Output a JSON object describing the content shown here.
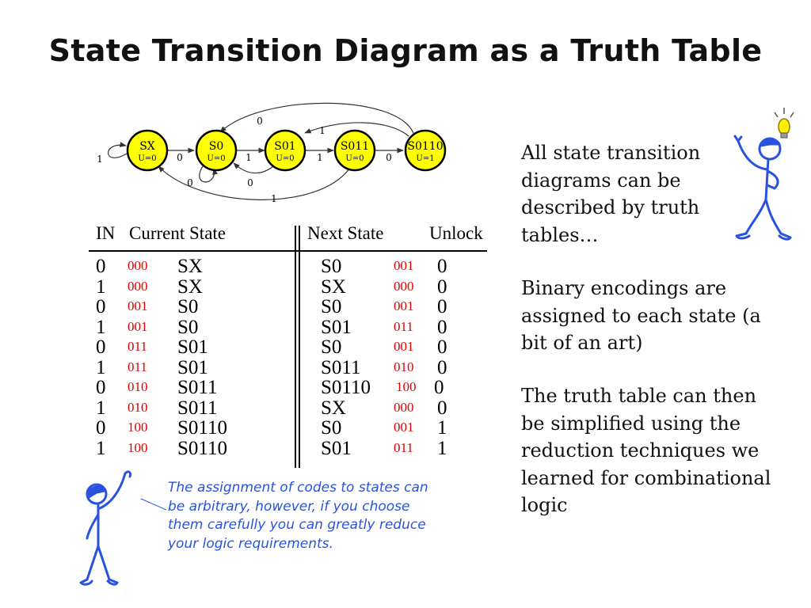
{
  "title": "State Transition Diagram as a Truth Table",
  "diagram": {
    "states": [
      {
        "name": "SX",
        "output": "U=0"
      },
      {
        "name": "S0",
        "output": "U=0"
      },
      {
        "name": "S01",
        "output": "U=0"
      },
      {
        "name": "S011",
        "output": "U=0"
      },
      {
        "name": "S0110",
        "output": "U=1"
      }
    ],
    "edge_labels": {
      "sx_self": "1",
      "sx_to_s0": "0",
      "s0_self": "0",
      "s0_to_s01": "1",
      "s01_to_s0": "0",
      "s01_to_s011": "1",
      "s011_to_s0110": "0",
      "s0110_to_s0": "0",
      "s0110_to_s01": "1",
      "s011_to_sx": "1"
    },
    "fill_color": "#ffff00",
    "stroke_color": "#000000"
  },
  "table": {
    "headers": {
      "in": "IN",
      "current": "Current State",
      "next": "Next State",
      "unlock": "Unlock"
    },
    "rows": [
      {
        "in": "0",
        "cur_code": "000",
        "cur": "SX",
        "next": "S0",
        "next_code": "001",
        "unlock": "0"
      },
      {
        "in": "1",
        "cur_code": "000",
        "cur": "SX",
        "next": "SX",
        "next_code": "000",
        "unlock": "0"
      },
      {
        "in": "0",
        "cur_code": "001",
        "cur": "S0",
        "next": "S0",
        "next_code": "001",
        "unlock": "0"
      },
      {
        "in": "1",
        "cur_code": "001",
        "cur": "S0",
        "next": "S01",
        "next_code": "011",
        "unlock": "0"
      },
      {
        "in": "0",
        "cur_code": "011",
        "cur": "S01",
        "next": "S0",
        "next_code": "001",
        "unlock": "0"
      },
      {
        "in": "1",
        "cur_code": "011",
        "cur": "S01",
        "next": "S011",
        "next_code": "010",
        "unlock": "0"
      },
      {
        "in": "0",
        "cur_code": "010",
        "cur": "S011",
        "next": "S0110",
        "next_code": "100",
        "unlock": "0"
      },
      {
        "in": "1",
        "cur_code": "010",
        "cur": "S011",
        "next": "SX",
        "next_code": "000",
        "unlock": "0"
      },
      {
        "in": "0",
        "cur_code": "100",
        "cur": "S0110",
        "next": "S0",
        "next_code": "001",
        "unlock": "1"
      },
      {
        "in": "1",
        "cur_code": "100",
        "cur": "S0110",
        "next": "S01",
        "next_code": "011",
        "unlock": "1"
      }
    ],
    "code_color": "#e00000"
  },
  "side_text": [
    "All state transition diagrams can be described by truth tables…",
    "Binary encodings are assigned to each state (a bit of an art)",
    "The truth table can then be simplified using the reduction techniques we learned for combinational logic"
  ],
  "note": "The assignment of codes to states can be arbitrary, however, if you choose them carefully you can greatly reduce your logic requirements.",
  "figures": {
    "color": "#2952e0",
    "bulb_color": "#ffee00",
    "top_right": "thinking-figure-with-lightbulb",
    "bottom_left": "figure-with-pointing-hand"
  }
}
